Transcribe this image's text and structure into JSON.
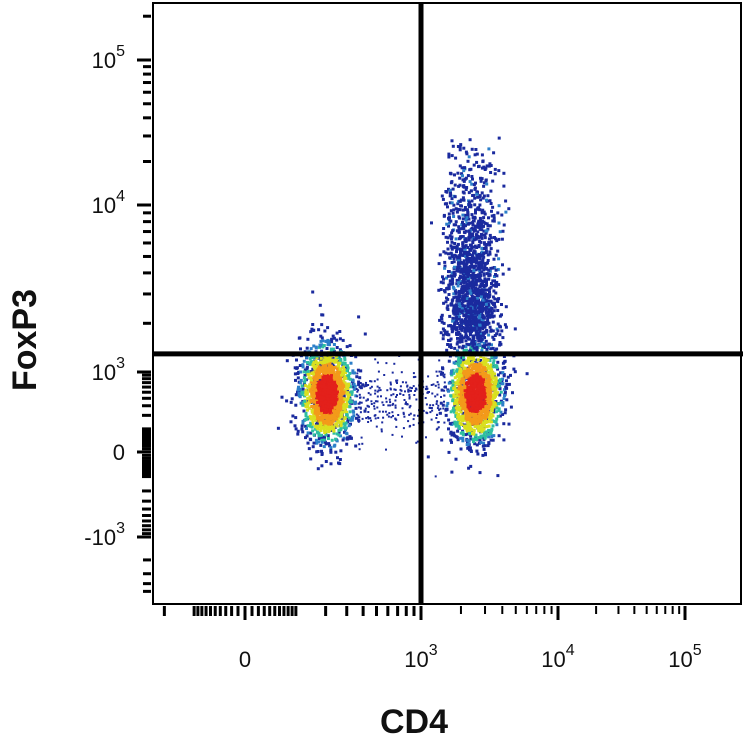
{
  "chart_data": {
    "type": "scatter",
    "plot": "flow-cytometry-density",
    "xlabel": "CD4",
    "ylabel": "FoxP3",
    "x_scale": "biexponential",
    "y_scale": "biexponential",
    "x_ticks": [
      {
        "value": 0,
        "base": "0",
        "exp": ""
      },
      {
        "value": 1000,
        "base": "10",
        "exp": "3"
      },
      {
        "value": 10000,
        "base": "10",
        "exp": "4"
      },
      {
        "value": 100000,
        "base": "10",
        "exp": "5"
      }
    ],
    "y_ticks": [
      {
        "value": 100000,
        "base": "10",
        "exp": "5"
      },
      {
        "value": 10000,
        "base": "10",
        "exp": "4"
      },
      {
        "value": 1000,
        "base": "10",
        "exp": "3"
      },
      {
        "value": 0,
        "base": "0",
        "exp": ""
      },
      {
        "value": -1000,
        "base": "-10",
        "exp": "3"
      }
    ],
    "gates": {
      "x": 1000,
      "y": 1300
    },
    "populations": [
      {
        "name": "CD4- FoxP3-",
        "x_center": 200,
        "y_center": 500,
        "density": "high"
      },
      {
        "name": "CD4+ FoxP3-",
        "x_center": 2500,
        "y_center": 500,
        "density": "high"
      },
      {
        "name": "CD4+ FoxP3+",
        "x_center": 2500,
        "y_center": 5000,
        "density": "low"
      },
      {
        "name": "CD4 intermediate bridge",
        "x_center": 600,
        "y_center": 400,
        "density": "sparse"
      }
    ],
    "grid": false,
    "legend": "none"
  },
  "colors": {
    "density_low": "#1a2a9e",
    "density_mid_low": "#2c7fc9",
    "density_mid": "#2fbfa0",
    "density_mid_high": "#d9e020",
    "density_high": "#f39a1a",
    "density_peak": "#e3201b",
    "gate_lines": "#000000",
    "axes": "#000000"
  }
}
